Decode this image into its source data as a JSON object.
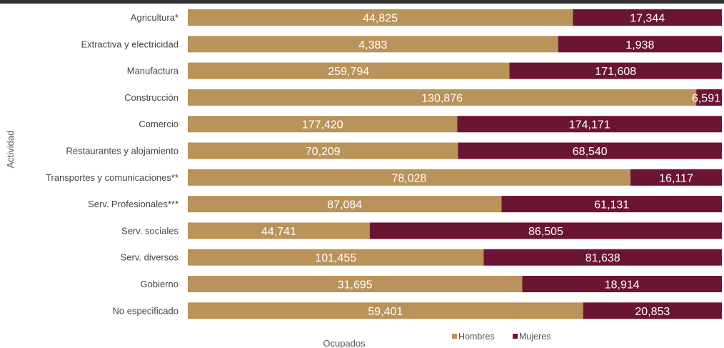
{
  "chart_data": {
    "type": "bar",
    "orientation": "horizontal",
    "stacked": "percent",
    "title": "",
    "xlabel": "Ocupados",
    "ylabel": "Actividad",
    "categories": [
      "Agricultura*",
      "Extractiva y electricidad",
      "Manufactura",
      "Construcción",
      "Comercio",
      "Restaurantes y alojamiento",
      "Transportes y comunicaciones**",
      "Serv. Profesionales***",
      "Serv. sociales",
      "Serv. diversos",
      "Gobierno",
      "No especificado"
    ],
    "series": [
      {
        "name": "Hombres",
        "color": "#b9935a",
        "values": [
          44825,
          4383,
          259794,
          130876,
          177420,
          70209,
          78028,
          87084,
          44741,
          101455,
          31695,
          59401
        ],
        "labels": [
          "44,825",
          "4,383",
          "259,794",
          "130,876",
          "177,420",
          "70,209",
          "78,028",
          "87,084",
          "44,741",
          "101,455",
          "31,695",
          "59,401"
        ]
      },
      {
        "name": "Mujeres",
        "color": "#6b1532",
        "values": [
          17344,
          1938,
          171608,
          6591,
          174171,
          68540,
          16117,
          61131,
          86505,
          81638,
          18914,
          20853
        ],
        "labels": [
          "17,344",
          "1,938",
          "171,608",
          "6,591",
          "174,171",
          "68,540",
          "16,117",
          "61,131",
          "86,505",
          "81,638",
          "18,914",
          "20,853"
        ]
      }
    ],
    "legend": "bottom",
    "grid": false
  }
}
